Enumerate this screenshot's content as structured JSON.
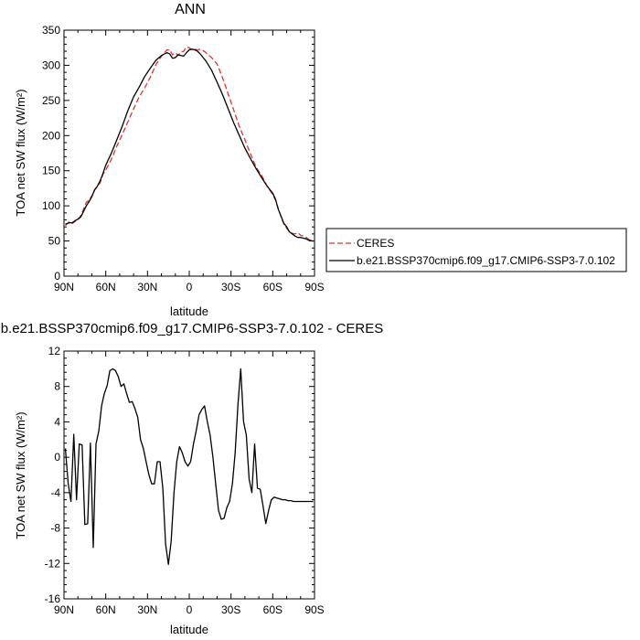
{
  "chart_data": [
    {
      "type": "line",
      "title": "ANN",
      "xlabel": "latitude",
      "ylabel": "TOA net SW flux (W/m²)",
      "xlim": [
        90,
        -90
      ],
      "ylim": [
        0,
        350
      ],
      "xticks": [
        90,
        60,
        30,
        0,
        -30,
        -60,
        -90
      ],
      "xtick_labels": [
        "90N",
        "60N",
        "30N",
        "0",
        "30S",
        "60S",
        "90S"
      ],
      "yticks": [
        0,
        50,
        100,
        150,
        200,
        250,
        300,
        350
      ],
      "legend_position": "right",
      "series": [
        {
          "name": "CERES",
          "style": "dashed",
          "color": "#e8302e",
          "x": [
            89,
            86,
            84,
            82,
            80,
            78,
            76,
            74,
            72,
            70,
            68,
            66,
            64,
            62,
            60,
            56,
            52,
            48,
            44,
            40,
            36,
            32,
            28,
            24,
            20,
            16,
            14,
            12,
            10,
            8,
            6,
            4,
            2,
            0,
            -2,
            -4,
            -6,
            -8,
            -10,
            -12,
            -16,
            -20,
            -24,
            -28,
            -32,
            -36,
            -40,
            -44,
            -48,
            -52,
            -56,
            -60,
            -62,
            -64,
            -66,
            -68,
            -70,
            -72,
            -74,
            -76,
            -78,
            -80,
            -82,
            -84,
            -86,
            -89
          ],
          "y": [
            72,
            78,
            75,
            78,
            80,
            86,
            95,
            105,
            108,
            114,
            122,
            128,
            133,
            145,
            151,
            166,
            185,
            202,
            220,
            238,
            255,
            268,
            283,
            301,
            313,
            322,
            322,
            315,
            318,
            314,
            319,
            320,
            326,
            325,
            322,
            323,
            322,
            323,
            321,
            318,
            311,
            302,
            282,
            259,
            236,
            213,
            194,
            174,
            155,
            143,
            128,
            116,
            108,
            96,
            84,
            74,
            68,
            63,
            61,
            60,
            62,
            58,
            57,
            55,
            52,
            50
          ]
        },
        {
          "name": "b.e21.BSSP370cmip6.f09_g17.CMIP6-SSP3-7.0.102",
          "style": "solid",
          "color": "#000000",
          "x": [
            89,
            86,
            84,
            82,
            80,
            78,
            76,
            74,
            72,
            70,
            68,
            66,
            64,
            62,
            60,
            56,
            52,
            48,
            44,
            40,
            36,
            32,
            28,
            24,
            20,
            16,
            14,
            12,
            10,
            8,
            6,
            4,
            2,
            0,
            -2,
            -4,
            -6,
            -8,
            -10,
            -12,
            -16,
            -20,
            -24,
            -28,
            -32,
            -36,
            -40,
            -44,
            -48,
            -52,
            -56,
            -60,
            -62,
            -64,
            -66,
            -68,
            -70,
            -72,
            -74,
            -76,
            -78,
            -80,
            -82,
            -84,
            -86,
            -89
          ],
          "y": [
            74,
            76,
            76,
            79,
            81,
            84,
            92,
            100,
            106,
            113,
            123,
            128,
            136,
            146,
            158,
            175,
            194,
            214,
            236,
            255,
            269,
            284,
            296,
            307,
            314,
            318,
            316,
            310,
            311,
            315,
            314,
            313,
            318,
            322,
            323,
            322,
            320,
            316,
            311,
            306,
            293,
            276,
            258,
            238,
            218,
            200,
            182,
            167,
            153,
            140,
            128,
            118,
            109,
            95,
            85,
            75,
            70,
            63,
            60,
            57,
            55,
            55,
            54,
            53,
            51,
            50
          ]
        }
      ]
    },
    {
      "type": "line",
      "title": "b.e21.BSSP370cmip6.f09_g17.CMIP6-SSP3-7.0.102 - CERES",
      "xlabel": "latitude",
      "ylabel": "TOA net SW flux (W/m²)",
      "xlim": [
        90,
        -90
      ],
      "ylim": [
        -16,
        12
      ],
      "xticks": [
        90,
        60,
        30,
        0,
        -30,
        -60,
        -90
      ],
      "xtick_labels": [
        "90N",
        "60N",
        "30N",
        "0",
        "30S",
        "60S",
        "90S"
      ],
      "yticks": [
        -16,
        -12,
        -8,
        -4,
        0,
        4,
        8,
        12
      ],
      "series": [
        {
          "style": "solid",
          "color": "#000000",
          "x": [
            89,
            87,
            85,
            83,
            81,
            79,
            77,
            75,
            73,
            71,
            69,
            67,
            65,
            63,
            61,
            59,
            57,
            55,
            53,
            51,
            49,
            47,
            45,
            43,
            41,
            39,
            37,
            35,
            33,
            31,
            29,
            27,
            25,
            23,
            21,
            19,
            17,
            15,
            13,
            11,
            9,
            7,
            5,
            3,
            1,
            -1,
            -3,
            -5,
            -7,
            -9,
            -11,
            -13,
            -15,
            -17,
            -19,
            -21,
            -23,
            -25,
            -27,
            -29,
            -31,
            -33,
            -35,
            -37,
            -39,
            -41,
            -43,
            -45,
            -47,
            -49,
            -51,
            -53,
            -55,
            -57,
            -59,
            -61,
            -63,
            -65,
            -67,
            -69,
            -71,
            -73,
            -75,
            -77,
            -79,
            -81,
            -83,
            -85,
            -87,
            -89
          ],
          "y": [
            1.0,
            -3.0,
            -5.0,
            2.6,
            -4.8,
            1.5,
            1.4,
            -7.6,
            -7.5,
            1.6,
            -10.2,
            1.5,
            3.0,
            5.8,
            7.2,
            8.1,
            9.8,
            10.0,
            9.8,
            9.1,
            8.0,
            8.3,
            7.2,
            6.2,
            6.3,
            5.5,
            4.5,
            2.0,
            1.0,
            -0.5,
            -2.0,
            -3.0,
            -3.0,
            -0.5,
            -0.5,
            -3.5,
            -9.8,
            -12.1,
            -9.5,
            -4.0,
            -0.5,
            1.2,
            0.5,
            -0.5,
            -1.0,
            -0.5,
            1.5,
            3.0,
            4.8,
            5.4,
            5.8,
            4.0,
            2.5,
            0.0,
            -3.0,
            -6.0,
            -7.0,
            -6.9,
            -5.7,
            -5.0,
            -3.0,
            0.5,
            6.0,
            10.0,
            4.0,
            2.5,
            -2.5,
            -4.0,
            1.5,
            -3.5,
            -3.6,
            -5.5,
            -7.5,
            -6.0,
            -4.8,
            -4.5,
            -4.6,
            -4.7,
            -4.8,
            -4.8,
            -4.9,
            -4.9,
            -5.0,
            -5.0,
            -5.0,
            -5.0,
            -5.0,
            -5.0,
            -5.0,
            -5.0
          ]
        }
      ]
    }
  ]
}
